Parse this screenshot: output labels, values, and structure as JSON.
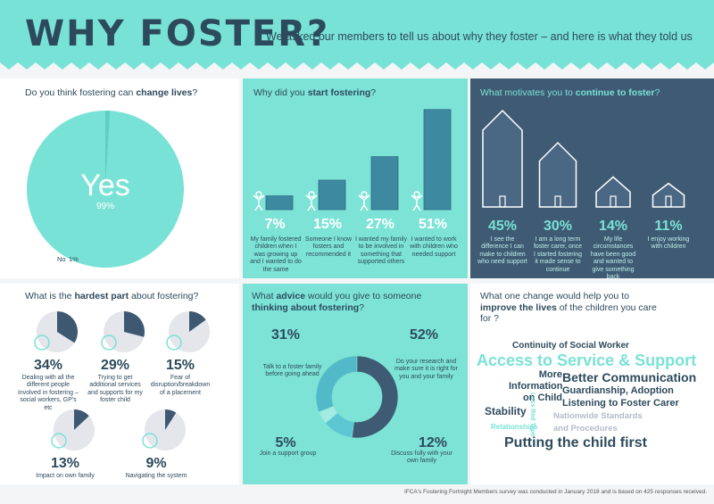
{
  "header": {
    "title": "WHY FOSTER?",
    "subtitle": "We asked our members to tell us about why they foster – and here is what they told us"
  },
  "change_lives": {
    "question": [
      "Do you think fostering can ",
      "change lives",
      "?"
    ],
    "yes": {
      "label": "Yes",
      "value": 99,
      "value_label": "99%"
    },
    "no": {
      "label": "No",
      "value": 1,
      "value_label": "1%"
    }
  },
  "start_fostering": {
    "question": [
      "Why did you ",
      "start fostering",
      "?"
    ],
    "items": [
      {
        "value": 7,
        "value_label": "7%",
        "text": "My family fostered children when I was growing up and I wanted to do the same"
      },
      {
        "value": 15,
        "value_label": "15%",
        "text": "Someone I know fosters and recommended it"
      },
      {
        "value": 27,
        "value_label": "27%",
        "text": "I wanted my family to be involved in something that supported others"
      },
      {
        "value": 51,
        "value_label": "51%",
        "text": "I wanted to work with children who needed support"
      }
    ]
  },
  "continue_fostering": {
    "question": [
      "What motivates you to ",
      "continue to foster",
      "?"
    ],
    "items": [
      {
        "value": 45,
        "value_label": "45%",
        "text": "I see the difference I can make to children who need support"
      },
      {
        "value": 30,
        "value_label": "30%",
        "text": "I am a long term foster carer, once I started fostering it made sense to continue"
      },
      {
        "value": 14,
        "value_label": "14%",
        "text": "My life circumstances have been good and wanted to give something back"
      },
      {
        "value": 11,
        "value_label": "11%",
        "text": "I enjoy working with children"
      }
    ]
  },
  "hardest_part": {
    "question": [
      "What is the ",
      "hardest part",
      " about fostering?"
    ],
    "items": [
      {
        "value": 34,
        "value_label": "34%",
        "text": "Dealing with all the different people involved in fostering – social workers, GP's etc"
      },
      {
        "value": 29,
        "value_label": "29%",
        "text": "Trying to get additional services and supports for my foster child"
      },
      {
        "value": 15,
        "value_label": "15%",
        "text": "Fear of disruption/breakdown of a placement"
      },
      {
        "value": 13,
        "value_label": "13%",
        "text": "Impact on own family"
      },
      {
        "value": 9,
        "value_label": "9%",
        "text": "Navigating the system"
      }
    ]
  },
  "advice": {
    "question": [
      "What ",
      "advice",
      " would you give to someone ",
      "thinking about fostering",
      "?"
    ],
    "items": [
      {
        "value": 31,
        "value_label": "31%",
        "text": "Talk to a foster family before going ahead"
      },
      {
        "value": 52,
        "value_label": "52%",
        "text": "Do your research and make sure it is right for you and your family"
      },
      {
        "value": 12,
        "value_label": "12%",
        "text": "Discuss fully with your own family"
      },
      {
        "value": 5,
        "value_label": "5%",
        "text": "Join a support group"
      }
    ]
  },
  "improve": {
    "question": [
      "What one change would help you to ",
      "improve the lives",
      " of the children you care for ?"
    ],
    "words": [
      "Continuity of Social Worker",
      "Access to Service & Support",
      "More Information on Child",
      "Better Communication",
      "Guardianship, Adoption",
      "Listening to Foster Carer",
      "Stability",
      "Loss Red Tape",
      "Nationwide Standards",
      "Relationships",
      "and Procedures",
      "Putting the child first"
    ]
  },
  "footer": "IFCA's Fostering Fortnight Members survey was conducted in January 2018 and is based on 425 responses received."
}
